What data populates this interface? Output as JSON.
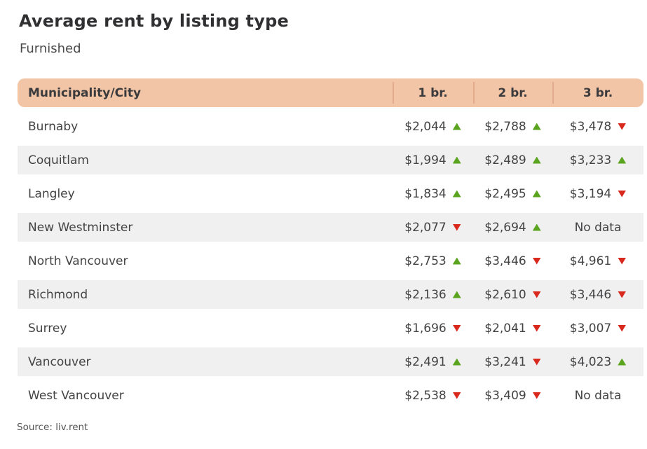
{
  "title": "Average rent by listing type",
  "subtitle": "Furnished",
  "source": "Source: liv.rent",
  "colors": {
    "header_bg": "#f2c5a6",
    "header_divider": "#e2ab8c",
    "row_stripe": "#f0f0f0",
    "up_arrow": "#5ba420",
    "down_arrow": "#d9291c"
  },
  "table": {
    "columns": [
      "Municipality/City",
      "1 br.",
      "2 br.",
      "3 br."
    ],
    "rows": [
      {
        "city": "Burnaby",
        "cells": [
          {
            "value": "$2,044",
            "trend": "up"
          },
          {
            "value": "$2,788",
            "trend": "up"
          },
          {
            "value": "$3,478",
            "trend": "down"
          }
        ]
      },
      {
        "city": "Coquitlam",
        "cells": [
          {
            "value": "$1,994",
            "trend": "up"
          },
          {
            "value": "$2,489",
            "trend": "up"
          },
          {
            "value": "$3,233",
            "trend": "up"
          }
        ]
      },
      {
        "city": "Langley",
        "cells": [
          {
            "value": "$1,834",
            "trend": "up"
          },
          {
            "value": "$2,495",
            "trend": "up"
          },
          {
            "value": "$3,194",
            "trend": "down"
          }
        ]
      },
      {
        "city": "New Westminster",
        "cells": [
          {
            "value": "$2,077",
            "trend": "down"
          },
          {
            "value": "$2,694",
            "trend": "up"
          },
          {
            "value": "No data",
            "trend": null
          }
        ]
      },
      {
        "city": "North Vancouver",
        "cells": [
          {
            "value": "$2,753",
            "trend": "up"
          },
          {
            "value": "$3,446",
            "trend": "down"
          },
          {
            "value": "$4,961",
            "trend": "down"
          }
        ]
      },
      {
        "city": "Richmond",
        "cells": [
          {
            "value": "$2,136",
            "trend": "up"
          },
          {
            "value": "$2,610",
            "trend": "down"
          },
          {
            "value": "$3,446",
            "trend": "down"
          }
        ]
      },
      {
        "city": "Surrey",
        "cells": [
          {
            "value": "$1,696",
            "trend": "down"
          },
          {
            "value": "$2,041",
            "trend": "down"
          },
          {
            "value": "$3,007",
            "trend": "down"
          }
        ]
      },
      {
        "city": "Vancouver",
        "cells": [
          {
            "value": "$2,491",
            "trend": "up"
          },
          {
            "value": "$3,241",
            "trend": "down"
          },
          {
            "value": "$4,023",
            "trend": "up"
          }
        ]
      },
      {
        "city": "West Vancouver",
        "cells": [
          {
            "value": "$2,538",
            "trend": "down"
          },
          {
            "value": "$3,409",
            "trend": "down"
          },
          {
            "value": "No data",
            "trend": null
          }
        ]
      }
    ]
  },
  "chart_data": {
    "type": "table",
    "title": "Average rent by listing type",
    "subtitle": "Furnished",
    "source": "Source: liv.rent",
    "columns": [
      "Municipality/City",
      "1 br.",
      "2 br.",
      "3 br."
    ],
    "categories": [
      "Burnaby",
      "Coquitlam",
      "Langley",
      "New Westminster",
      "North Vancouver",
      "Richmond",
      "Surrey",
      "Vancouver",
      "West Vancouver"
    ],
    "series": [
      {
        "name": "1 br.",
        "values": [
          2044,
          1994,
          1834,
          2077,
          2753,
          2136,
          1696,
          2491,
          2538
        ],
        "trends": [
          "up",
          "up",
          "up",
          "down",
          "up",
          "up",
          "down",
          "up",
          "down"
        ]
      },
      {
        "name": "2 br.",
        "values": [
          2788,
          2489,
          2495,
          2694,
          3446,
          2610,
          2041,
          3241,
          3409
        ],
        "trends": [
          "up",
          "up",
          "up",
          "up",
          "down",
          "down",
          "down",
          "down",
          "down"
        ]
      },
      {
        "name": "3 br.",
        "values": [
          3478,
          3233,
          3194,
          null,
          4961,
          3446,
          3007,
          4023,
          null
        ],
        "trends": [
          "down",
          "up",
          "down",
          null,
          "down",
          "down",
          "down",
          "up",
          null
        ]
      }
    ],
    "no_data_label": "No data",
    "trend_legend": {
      "up": "rent increased (green up arrow)",
      "down": "rent decreased (red down arrow)"
    }
  }
}
